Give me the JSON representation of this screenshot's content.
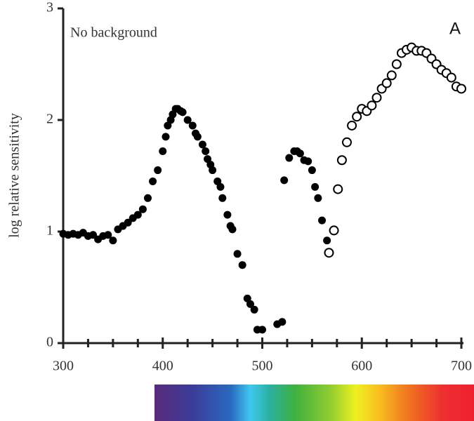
{
  "chart_data": {
    "type": "scatter",
    "label": "A",
    "annotation": "No background",
    "y_label": "log relative sensitivity",
    "xlim": [
      300,
      700
    ],
    "ylim": [
      0,
      3
    ],
    "xticks": [
      300,
      400,
      500,
      600,
      700
    ],
    "x_minor_ticks": [
      325,
      350,
      375,
      425,
      450,
      475,
      525,
      550,
      575,
      625,
      650,
      675
    ],
    "yticks": [
      0,
      1,
      2,
      3
    ],
    "series": [
      {
        "marker": "filled",
        "color": "#000000",
        "x": [
          300,
          305,
          310,
          315,
          320,
          325,
          330,
          335,
          340,
          345,
          350,
          355,
          360,
          365,
          370,
          375,
          380,
          385,
          390,
          395,
          400,
          403,
          405,
          408,
          410,
          413,
          415,
          418,
          420,
          425,
          430,
          433,
          435,
          440,
          443,
          445,
          448,
          450,
          455,
          458,
          460,
          465,
          468,
          470,
          475,
          480,
          485,
          488,
          492,
          495,
          500,
          515,
          520,
          522,
          527,
          532,
          535,
          538,
          542,
          546,
          550,
          553,
          556,
          560,
          565
        ],
        "values": [
          0.98,
          0.97,
          0.98,
          0.97,
          0.99,
          0.96,
          0.97,
          0.93,
          0.96,
          0.97,
          0.92,
          1.02,
          1.05,
          1.08,
          1.12,
          1.15,
          1.2,
          1.3,
          1.45,
          1.55,
          1.72,
          1.85,
          1.95,
          2.0,
          2.05,
          2.1,
          2.1,
          2.08,
          2.07,
          2.0,
          1.95,
          1.88,
          1.85,
          1.78,
          1.72,
          1.65,
          1.6,
          1.55,
          1.45,
          1.4,
          1.3,
          1.15,
          1.05,
          1.02,
          0.8,
          0.7,
          0.4,
          0.35,
          0.3,
          0.12,
          0.12,
          0.17,
          0.19,
          1.46,
          1.66,
          1.72,
          1.72,
          1.7,
          1.64,
          1.63,
          1.55,
          1.4,
          1.3,
          1.1,
          0.92
        ]
      },
      {
        "marker": "open",
        "color": "#000000",
        "x": [
          567,
          572,
          576,
          580,
          585,
          590,
          595,
          600,
          605,
          610,
          615,
          620,
          625,
          630,
          635,
          640,
          645,
          650,
          655,
          660,
          665,
          670,
          675,
          680,
          685,
          690,
          695,
          700
        ],
        "values": [
          0.81,
          1.01,
          1.38,
          1.64,
          1.8,
          1.95,
          2.03,
          2.1,
          2.08,
          2.13,
          2.2,
          2.28,
          2.33,
          2.4,
          2.5,
          2.6,
          2.63,
          2.65,
          2.62,
          2.62,
          2.6,
          2.55,
          2.5,
          2.45,
          2.42,
          2.38,
          2.3,
          2.28
        ]
      }
    ]
  }
}
